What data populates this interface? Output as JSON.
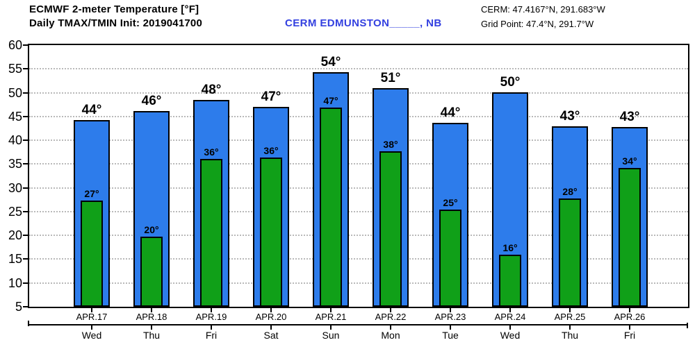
{
  "header": {
    "title": "ECMWF 2-meter Temperature [°F]",
    "subtitle": "Daily TMAX/TMIN Init: 2019041700",
    "station": "CERM EDMUNSTON_____, NB",
    "cerm_coords": "CERM: 47.4167°N, 291.683°W",
    "grid_point": "Grid Point: 47.4°N, 291.7°W"
  },
  "colors": {
    "tmax_bar": "#2d7ceb",
    "tmin_bar": "#10a018",
    "station_text": "#3340e0",
    "grid_dots": "#b9b9b9"
  },
  "chart_data": {
    "type": "bar",
    "title": "ECMWF 2-meter Temperature [°F]",
    "subtitle": "Daily TMAX/TMIN Init: 2019041700",
    "categories": [
      "APR.17",
      "APR.18",
      "APR.19",
      "APR.20",
      "APR.21",
      "APR.22",
      "APR.23",
      "APR.24",
      "APR.25",
      "APR.26"
    ],
    "weekdays": [
      "Wed",
      "Thu",
      "Fri",
      "Sat",
      "Sun",
      "Mon",
      "Tue",
      "Wed",
      "Thu",
      "Fri"
    ],
    "series": [
      {
        "name": "TMAX",
        "color": "#2d7ceb",
        "labels": [
          "44°",
          "46°",
          "48°",
          "47°",
          "54°",
          "51°",
          "44°",
          "50°",
          "43°",
          "43°"
        ],
        "values": [
          44.3,
          46.1,
          48.5,
          47.0,
          54.3,
          50.9,
          43.6,
          50.1,
          43.0,
          42.8
        ]
      },
      {
        "name": "TMIN",
        "color": "#10a018",
        "labels": [
          "27°",
          "20°",
          "36°",
          "36°",
          "47°",
          "38°",
          "25°",
          "16°",
          "28°",
          "34°"
        ],
        "values": [
          27.3,
          19.8,
          36.1,
          36.3,
          46.9,
          37.7,
          25.4,
          16.0,
          27.7,
          34.2
        ]
      }
    ],
    "ylabel": "",
    "xlabel": "",
    "ylim": [
      5,
      60
    ],
    "yticks": [
      60,
      55,
      50,
      45,
      40,
      35,
      30,
      25,
      20,
      15,
      10,
      5
    ],
    "grid": "horizontal-dotted",
    "legend_position": "none"
  }
}
